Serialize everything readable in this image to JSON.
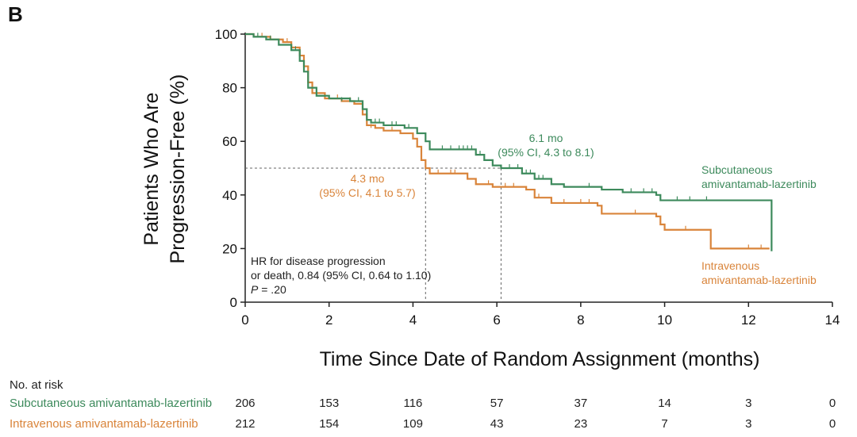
{
  "panel_label": "B",
  "colors": {
    "subcutaneous": "#3d8a5c",
    "intravenous": "#d9843a",
    "axis": "#222222",
    "ref_line": "#666666"
  },
  "chart_data": {
    "type": "line",
    "subtype": "kaplan-meier",
    "xlabel": "Time Since Date of Random Assignment (months)",
    "ylabel_line1": "Patients Who Are",
    "ylabel_line2": "Progression-Free (%)",
    "xlim": [
      0,
      14
    ],
    "ylim": [
      0,
      100
    ],
    "x_ticks": [
      0,
      2,
      4,
      6,
      8,
      10,
      12,
      14
    ],
    "y_ticks": [
      0,
      20,
      40,
      60,
      80,
      100
    ],
    "median_line_y": 50,
    "series": [
      {
        "name": "Subcutaneous amivantamab-lazertinib",
        "legend_line1": "Subcutaneous",
        "legend_line2": "amivantamab-lazertinib",
        "color": "#3d8a5c",
        "median_label": "6.1 mo",
        "median_ci": "(95% CI, 4.3 to 8.1)",
        "median_x": 6.1,
        "steps": [
          [
            0,
            100
          ],
          [
            0.2,
            99
          ],
          [
            0.5,
            98
          ],
          [
            0.8,
            96
          ],
          [
            1.1,
            94
          ],
          [
            1.3,
            90
          ],
          [
            1.4,
            86
          ],
          [
            1.5,
            80
          ],
          [
            1.7,
            77
          ],
          [
            2.0,
            76
          ],
          [
            2.5,
            75
          ],
          [
            2.8,
            72
          ],
          [
            2.9,
            68
          ],
          [
            3.0,
            67
          ],
          [
            3.3,
            66
          ],
          [
            3.8,
            65
          ],
          [
            4.1,
            63
          ],
          [
            4.3,
            60
          ],
          [
            4.4,
            57
          ],
          [
            5.5,
            55
          ],
          [
            5.7,
            53
          ],
          [
            5.9,
            51
          ],
          [
            6.1,
            50
          ],
          [
            6.6,
            48
          ],
          [
            6.9,
            46
          ],
          [
            7.3,
            44
          ],
          [
            7.6,
            43
          ],
          [
            8.5,
            42
          ],
          [
            9.0,
            41
          ],
          [
            9.8,
            40
          ],
          [
            9.9,
            38
          ],
          [
            12.55,
            38
          ],
          [
            12.55,
            19
          ]
        ],
        "censor": [
          [
            0.3,
            99
          ],
          [
            0.6,
            98
          ],
          [
            1.2,
            94
          ],
          [
            2.3,
            75
          ],
          [
            2.7,
            75
          ],
          [
            3.1,
            67
          ],
          [
            3.2,
            67
          ],
          [
            3.5,
            66
          ],
          [
            3.6,
            66
          ],
          [
            3.9,
            65
          ],
          [
            4.7,
            57
          ],
          [
            4.9,
            57
          ],
          [
            5.1,
            57
          ],
          [
            5.2,
            57
          ],
          [
            5.3,
            57
          ],
          [
            5.4,
            57
          ],
          [
            5.6,
            55
          ],
          [
            6.3,
            50
          ],
          [
            6.5,
            50
          ],
          [
            6.7,
            48
          ],
          [
            6.8,
            48
          ],
          [
            7.0,
            46
          ],
          [
            7.1,
            46
          ],
          [
            8.2,
            43
          ],
          [
            9.2,
            41
          ],
          [
            9.5,
            41
          ],
          [
            9.7,
            41
          ],
          [
            10.3,
            38
          ],
          [
            10.6,
            38
          ],
          [
            11.0,
            38
          ]
        ]
      },
      {
        "name": "Intravenous amivantamab-lazertinib",
        "legend_line1": "Intravenous",
        "legend_line2": "amivantamab-lazertinib",
        "color": "#d9843a",
        "median_label": "4.3 mo",
        "median_ci": "(95% CI, 4.1 to 5.7)",
        "median_x": 4.3,
        "steps": [
          [
            0,
            100
          ],
          [
            0.2,
            99
          ],
          [
            0.6,
            98
          ],
          [
            0.9,
            97
          ],
          [
            1.1,
            95
          ],
          [
            1.3,
            92
          ],
          [
            1.4,
            88
          ],
          [
            1.5,
            82
          ],
          [
            1.6,
            78
          ],
          [
            1.9,
            76
          ],
          [
            2.3,
            75
          ],
          [
            2.6,
            74
          ],
          [
            2.8,
            70
          ],
          [
            2.9,
            66
          ],
          [
            3.1,
            65
          ],
          [
            3.3,
            64
          ],
          [
            3.7,
            63
          ],
          [
            4.0,
            61
          ],
          [
            4.1,
            58
          ],
          [
            4.2,
            53
          ],
          [
            4.3,
            50
          ],
          [
            4.4,
            48
          ],
          [
            5.3,
            46
          ],
          [
            5.5,
            44
          ],
          [
            5.9,
            43
          ],
          [
            6.7,
            42
          ],
          [
            6.9,
            39
          ],
          [
            7.3,
            37
          ],
          [
            8.4,
            36
          ],
          [
            8.5,
            33
          ],
          [
            9.8,
            32
          ],
          [
            9.9,
            29
          ],
          [
            10.0,
            27
          ],
          [
            11.1,
            27
          ],
          [
            11.1,
            20
          ],
          [
            12.5,
            20
          ]
        ],
        "censor": [
          [
            0.4,
            99
          ],
          [
            1.0,
            97
          ],
          [
            2.2,
            76
          ],
          [
            2.5,
            75
          ],
          [
            3.0,
            65
          ],
          [
            3.5,
            64
          ],
          [
            4.6,
            48
          ],
          [
            4.9,
            48
          ],
          [
            5.0,
            48
          ],
          [
            5.8,
            44
          ],
          [
            6.2,
            43
          ],
          [
            6.4,
            43
          ],
          [
            7.0,
            39
          ],
          [
            7.6,
            37
          ],
          [
            8.0,
            37
          ],
          [
            8.2,
            37
          ],
          [
            9.3,
            33
          ],
          [
            10.5,
            27
          ],
          [
            12.0,
            20
          ],
          [
            12.3,
            20
          ]
        ]
      }
    ],
    "annotation": {
      "line1": "HR for disease progression",
      "line2": "or death, 0.84 (95% CI, 0.64 to 1.10)",
      "p_label": "P",
      "p_value": " = .20"
    }
  },
  "risk_table": {
    "title": "No. at risk",
    "times": [
      0,
      2,
      4,
      6,
      8,
      10,
      12,
      14
    ],
    "rows": [
      {
        "label": "Subcutaneous amivantamab-lazertinib",
        "color": "#3d8a5c",
        "values": [
          "206",
          "153",
          "116",
          "57",
          "37",
          "14",
          "3",
          "0"
        ]
      },
      {
        "label": "Intravenous amivantamab-lazertinib",
        "color": "#d9843a",
        "values": [
          "212",
          "154",
          "109",
          "43",
          "23",
          "7",
          "3",
          "0"
        ]
      }
    ]
  }
}
